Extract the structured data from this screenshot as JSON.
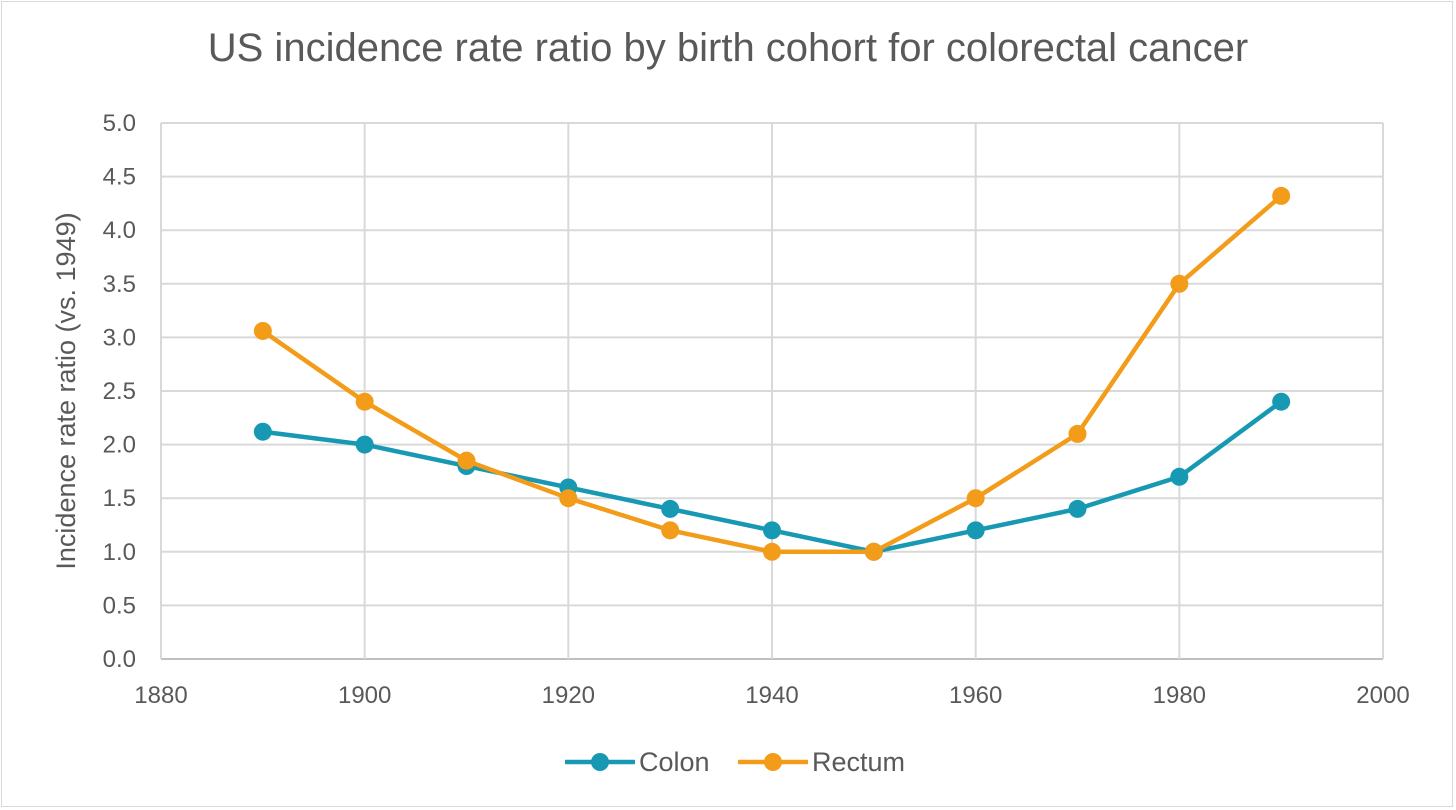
{
  "chart_data": {
    "type": "line",
    "title": "US incidence rate ratio by birth cohort for colorectal cancer",
    "xlabel": "",
    "ylabel": "Incidence rate ratio (vs. 1949)",
    "xlim": [
      1880,
      2000
    ],
    "ylim": [
      0,
      5
    ],
    "xticks": [
      1880,
      1900,
      1920,
      1940,
      1960,
      1980,
      2000
    ],
    "yticks": [
      0.0,
      0.5,
      1.0,
      1.5,
      2.0,
      2.5,
      3.0,
      3.5,
      4.0,
      4.5,
      5.0
    ],
    "grid": true,
    "legend_position": "bottom",
    "series": [
      {
        "name": "Colon",
        "color": "#1899b3",
        "points": [
          [
            1890,
            2.12
          ],
          [
            1900,
            2.0
          ],
          [
            1910,
            1.8
          ],
          [
            1920,
            1.6
          ],
          [
            1930,
            1.4
          ],
          [
            1940,
            1.2
          ],
          [
            1950,
            1.0
          ],
          [
            1960,
            1.2
          ],
          [
            1970,
            1.4
          ],
          [
            1980,
            1.7
          ],
          [
            1990,
            2.4
          ]
        ]
      },
      {
        "name": "Rectum",
        "color": "#f29c1a",
        "points": [
          [
            1890,
            3.06
          ],
          [
            1900,
            2.4
          ],
          [
            1910,
            1.85
          ],
          [
            1920,
            1.5
          ],
          [
            1930,
            1.2
          ],
          [
            1940,
            1.0
          ],
          [
            1950,
            1.0
          ],
          [
            1960,
            1.5
          ],
          [
            1970,
            2.1
          ],
          [
            1980,
            3.5
          ],
          [
            1990,
            4.32
          ]
        ]
      }
    ]
  }
}
